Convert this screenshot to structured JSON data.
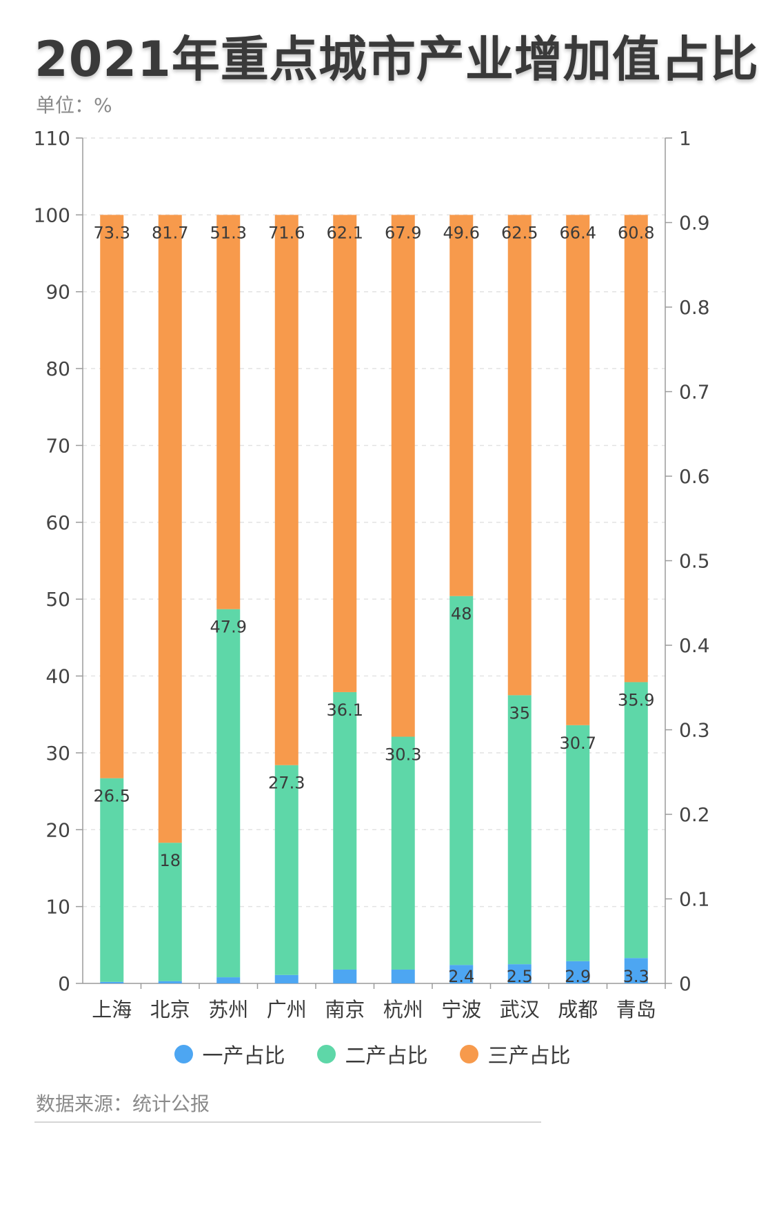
{
  "title": "2021年重点城市产业增加值占比",
  "unit_label": "单位：%",
  "source_label": "数据来源：统计公报",
  "chart_data": {
    "type": "bar",
    "stacked": true,
    "categories": [
      "上海",
      "北京",
      "苏州",
      "广州",
      "南京",
      "杭州",
      "宁波",
      "武汉",
      "成都",
      "青岛"
    ],
    "series": [
      {
        "name": "一产占比",
        "color": "#4da6f2",
        "values": [
          0.2,
          0.3,
          0.8,
          1.1,
          1.8,
          1.8,
          2.4,
          2.5,
          2.9,
          3.3
        ]
      },
      {
        "name": "二产占比",
        "color": "#5ed7a8",
        "values": [
          26.5,
          18,
          47.9,
          27.3,
          36.1,
          30.3,
          48,
          35,
          30.7,
          35.9
        ]
      },
      {
        "name": "三产占比",
        "color": "#f79a4c",
        "values": [
          73.3,
          81.7,
          51.3,
          71.6,
          62.1,
          67.9,
          49.6,
          62.5,
          66.4,
          60.8
        ]
      }
    ],
    "data_labels": {
      "一产占比": [
        "",
        "",
        "",
        "",
        "",
        "",
        "2.4",
        "2.5",
        "2.9",
        "3.3"
      ],
      "二产占比": [
        "26.5",
        "18",
        "47.9",
        "27.3",
        "36.1",
        "30.3",
        "48",
        "35",
        "30.7",
        "35.9"
      ],
      "三产占比": [
        "73.3",
        "81.7",
        "51.3",
        "71.6",
        "62.1",
        "67.9",
        "49.6",
        "62.5",
        "66.4",
        "60.8"
      ]
    },
    "y_left": {
      "min": 0,
      "max": 110,
      "ticks": [
        "0",
        "10",
        "20",
        "30",
        "40",
        "50",
        "60",
        "70",
        "80",
        "90",
        "100",
        "110"
      ]
    },
    "y_right": {
      "min": 0,
      "max": 1,
      "ticks": [
        "0",
        "0.1",
        "0.2",
        "0.3",
        "0.4",
        "0.5",
        "0.6",
        "0.7",
        "0.8",
        "0.9",
        "1"
      ]
    },
    "grid": true,
    "legend_position": "bottom"
  }
}
